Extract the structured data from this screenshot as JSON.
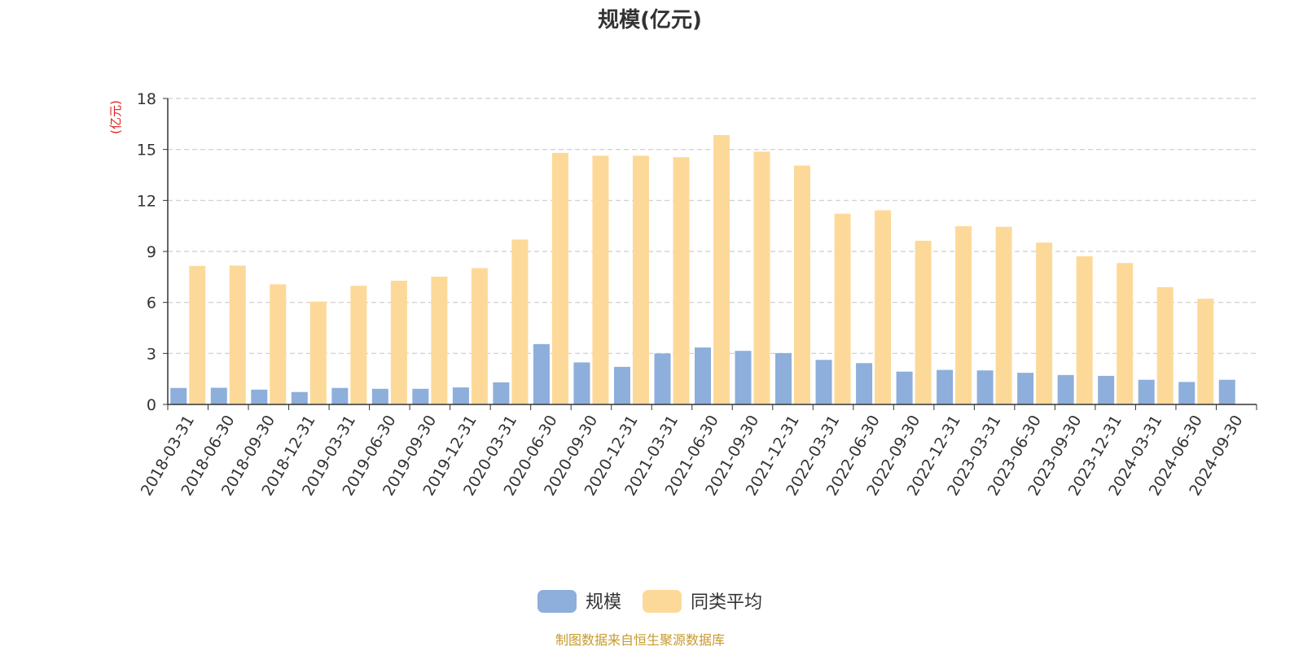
{
  "chart_data": {
    "type": "bar",
    "title": "规模(亿元)",
    "yunit": "(亿元)",
    "ylim": [
      0,
      18
    ],
    "yticks": [
      0,
      3,
      6,
      9,
      12,
      15,
      18
    ],
    "grid": true,
    "legend_position": "bottom-center",
    "categories": [
      "2018-03-31",
      "2018-06-30",
      "2018-09-30",
      "2018-12-31",
      "2019-03-31",
      "2019-06-30",
      "2019-09-30",
      "2019-12-31",
      "2020-03-31",
      "2020-06-30",
      "2020-09-30",
      "2020-12-31",
      "2021-03-31",
      "2021-06-30",
      "2021-09-30",
      "2021-12-31",
      "2022-03-31",
      "2022-06-30",
      "2022-09-30",
      "2022-12-31",
      "2023-03-31",
      "2023-06-30",
      "2023-09-30",
      "2023-12-31",
      "2024-03-31",
      "2024-06-30",
      "2024-09-30"
    ],
    "series": [
      {
        "name": "规模",
        "color": "#8eaedb",
        "values": [
          0.97,
          0.98,
          0.87,
          0.73,
          0.97,
          0.92,
          0.92,
          1.0,
          1.3,
          3.55,
          2.47,
          2.21,
          3.0,
          3.35,
          3.15,
          3.02,
          2.62,
          2.43,
          1.93,
          2.03,
          2.0,
          1.86,
          1.73,
          1.68,
          1.45,
          1.32,
          1.45
        ]
      },
      {
        "name": "同类平均",
        "color": "#fdd999",
        "values": [
          8.15,
          8.17,
          7.07,
          6.05,
          6.98,
          7.28,
          7.52,
          8.02,
          9.7,
          14.8,
          14.63,
          14.63,
          14.55,
          15.85,
          14.87,
          14.05,
          11.22,
          11.42,
          9.63,
          10.48,
          10.45,
          9.52,
          8.72,
          8.32,
          6.9,
          6.22,
          null
        ]
      }
    ]
  },
  "source_text": "制图数据来自恒生聚源数据库"
}
